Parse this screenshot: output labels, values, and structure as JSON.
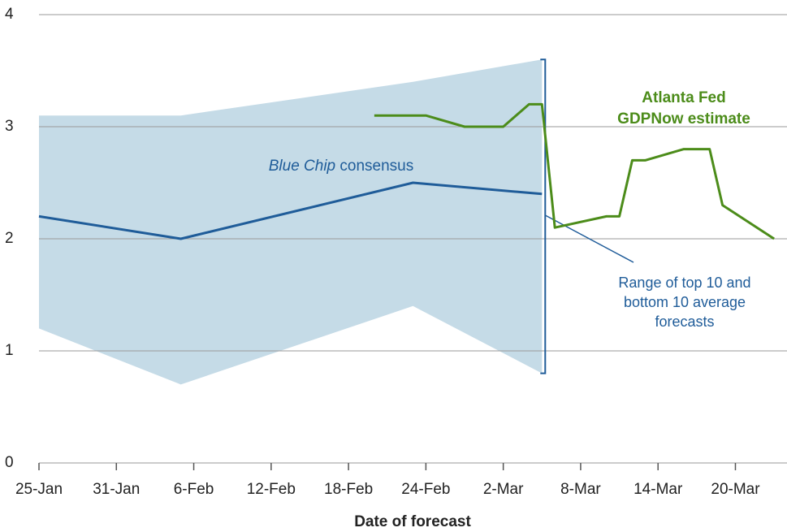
{
  "chart_data": {
    "type": "line",
    "xlabel": "Date of forecast",
    "xlim": [
      25,
      83
    ],
    "xticks": [
      {
        "value": 25,
        "label": "25-Jan"
      },
      {
        "value": 31,
        "label": "31-Jan"
      },
      {
        "value": 37,
        "label": "6-Feb"
      },
      {
        "value": 43,
        "label": "12-Feb"
      },
      {
        "value": 49,
        "label": "18-Feb"
      },
      {
        "value": 55,
        "label": "24-Feb"
      },
      {
        "value": 61,
        "label": "2-Mar"
      },
      {
        "value": 67,
        "label": "8-Mar"
      },
      {
        "value": 73,
        "label": "14-Mar"
      },
      {
        "value": 79,
        "label": "20-Mar"
      }
    ],
    "ylim": [
      0,
      4
    ],
    "yticks": [
      0,
      1,
      2,
      3,
      4
    ],
    "grid": true,
    "band": {
      "color": "#c5dbe7",
      "x": [
        25,
        36,
        54,
        64
      ],
      "upper": [
        3.1,
        3.1,
        3.4,
        3.6
      ],
      "lower": [
        1.2,
        0.7,
        1.4,
        0.8
      ]
    },
    "series": [
      {
        "color": "#1f5c99",
        "x": [
          25,
          36,
          54,
          64
        ],
        "values": [
          2.2,
          2.0,
          2.5,
          2.4
        ]
      },
      {
        "color": "#4c8c1a",
        "x": [
          51,
          55,
          58,
          61,
          63,
          64,
          65,
          69,
          70,
          71,
          72,
          75,
          77,
          78,
          82
        ],
        "values": [
          3.1,
          3.1,
          3.0,
          3.0,
          3.2,
          3.2,
          2.1,
          2.2,
          2.2,
          2.7,
          2.7,
          2.8,
          2.8,
          2.3,
          2.0
        ]
      }
    ],
    "annotations": {
      "consensus": [
        "Blue Chip",
        "consensus"
      ],
      "gdpnow": [
        "Atlanta Fed",
        "GDPNow estimate"
      ],
      "range": [
        "Range of top 10 and",
        "bottom 10 average",
        "forecasts"
      ]
    }
  }
}
